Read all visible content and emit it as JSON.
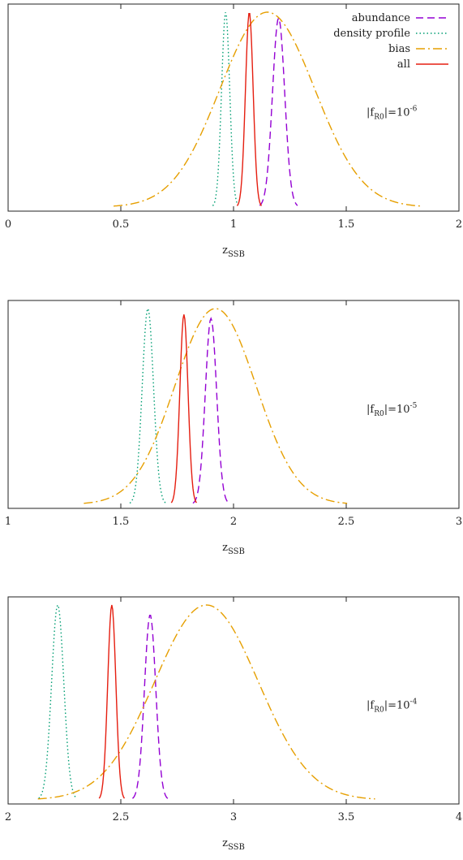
{
  "chart_data": [
    {
      "type": "line",
      "xlim": [
        0,
        2
      ],
      "ylim": [
        0,
        1
      ],
      "xticks": [
        "0",
        "0.5",
        "1",
        "1.5",
        "2"
      ],
      "xtick_values": [
        0,
        0.5,
        1,
        1.5,
        2
      ],
      "xlabel": {
        "main": "z",
        "sub": "SSB"
      },
      "annotation": {
        "prefix": "|f",
        "sub": "R0",
        "mid": "|=10",
        "sup": "-6"
      },
      "legend": {
        "placement": "top-right",
        "entries": [
          "abundance",
          "density profile",
          "bias",
          "all"
        ]
      },
      "series": [
        {
          "name": "abundance",
          "color": "#9400d3",
          "dash": "dashed",
          "mu": 1.2,
          "sigma": 0.027,
          "amp": 0.97
        },
        {
          "name": "density profile",
          "color": "#009e73",
          "dash": "dotted",
          "mu": 0.965,
          "sigma": 0.018,
          "amp": 1.0
        },
        {
          "name": "bias",
          "color": "#e69f00",
          "dash": "dash-dot",
          "mu": 1.15,
          "sigma": 0.21,
          "amp": 1.0
        },
        {
          "name": "all",
          "color": "#e51e10",
          "dash": "solid",
          "mu": 1.07,
          "sigma": 0.017,
          "amp": 1.0
        }
      ]
    },
    {
      "type": "line",
      "xlim": [
        1,
        3
      ],
      "ylim": [
        0,
        1
      ],
      "xticks": [
        "1",
        "1.5",
        "2",
        "2.5",
        "3"
      ],
      "xtick_values": [
        1,
        1.5,
        2,
        2.5,
        3
      ],
      "xlabel": {
        "main": "z",
        "sub": "SSB"
      },
      "annotation": {
        "prefix": "|f",
        "sub": "R0",
        "mid": "|=10",
        "sup": "-5"
      },
      "series": [
        {
          "name": "abundance",
          "color": "#9400d3",
          "dash": "dashed",
          "mu": 1.9,
          "sigma": 0.025,
          "amp": 0.95
        },
        {
          "name": "density profile",
          "color": "#009e73",
          "dash": "dotted",
          "mu": 1.62,
          "sigma": 0.025,
          "amp": 1.0
        },
        {
          "name": "bias",
          "color": "#e69f00",
          "dash": "dash-dot",
          "mu": 1.92,
          "sigma": 0.18,
          "amp": 1.0
        },
        {
          "name": "all",
          "color": "#e51e10",
          "dash": "solid",
          "mu": 1.78,
          "sigma": 0.018,
          "amp": 0.97
        }
      ]
    },
    {
      "type": "line",
      "xlim": [
        2,
        4
      ],
      "ylim": [
        0,
        1
      ],
      "xticks": [
        "2",
        "2.5",
        "3",
        "3.5",
        "4"
      ],
      "xtick_values": [
        2,
        2.5,
        3,
        3.5,
        4
      ],
      "xlabel": {
        "main": "z",
        "sub": "SSB"
      },
      "annotation": {
        "prefix": "|f",
        "sub": "R0",
        "mid": "|=10",
        "sup": "-4"
      },
      "series": [
        {
          "name": "abundance",
          "color": "#9400d3",
          "dash": "dashed",
          "mu": 2.63,
          "sigma": 0.025,
          "amp": 0.95
        },
        {
          "name": "density profile",
          "color": "#009e73",
          "dash": "dotted",
          "mu": 2.22,
          "sigma": 0.027,
          "amp": 1.0
        },
        {
          "name": "bias",
          "color": "#e69f00",
          "dash": "dash-dot",
          "mu": 2.88,
          "sigma": 0.23,
          "amp": 1.0
        },
        {
          "name": "all",
          "color": "#e51e10",
          "dash": "solid",
          "mu": 2.46,
          "sigma": 0.018,
          "amp": 1.0
        }
      ]
    }
  ]
}
